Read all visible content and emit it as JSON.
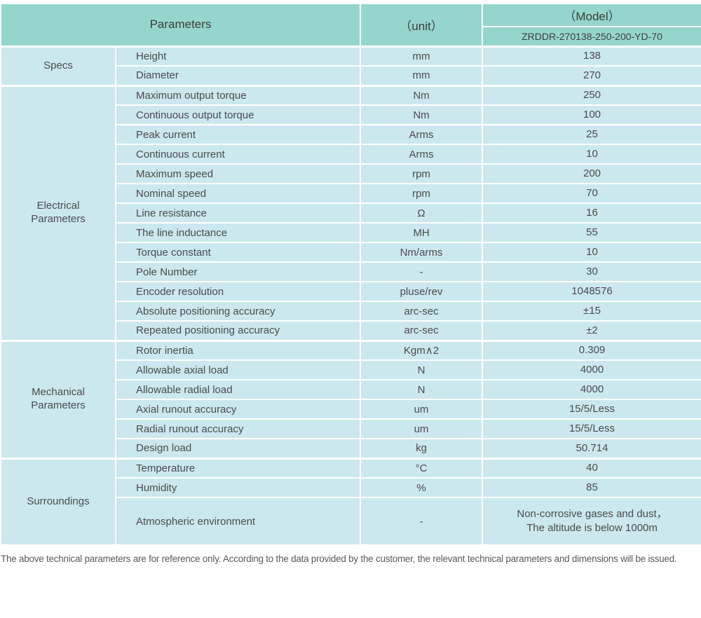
{
  "colors": {
    "header_bg": "#95d6cc",
    "body_bg": "#cce8ef",
    "text": "#4a4a4a",
    "footer_text": "#595959"
  },
  "header": {
    "parameters_label": "Parameters",
    "unit_label": "（unit）",
    "model_label": "（Model）",
    "model_value": "ZRDDR-270138-250-200-YD-70"
  },
  "table": {
    "sections": [
      {
        "category": "Specs",
        "rows": [
          {
            "param": "Height",
            "unit": "mm",
            "value": "138"
          },
          {
            "param": "Diameter",
            "unit": "mm",
            "value": "270"
          }
        ]
      },
      {
        "category": "Electrical Parameters",
        "rows": [
          {
            "param": "Maximum output torque",
            "unit": "Nm",
            "value": "250"
          },
          {
            "param": "Continuous output torque",
            "unit": "Nm",
            "value": "100"
          },
          {
            "param": "Peak current",
            "unit": "Arms",
            "value": "25"
          },
          {
            "param": "Continuous current",
            "unit": "Arms",
            "value": "10"
          },
          {
            "param": "Maximum speed",
            "unit": "rpm",
            "value": "200"
          },
          {
            "param": "Nominal speed",
            "unit": "rpm",
            "value": "70"
          },
          {
            "param": "Line resistance",
            "unit": "Ω",
            "value": "16"
          },
          {
            "param": "The line inductance",
            "unit": "MH",
            "value": "55"
          },
          {
            "param": "Torque constant",
            "unit": "Nm/arms",
            "value": "10"
          },
          {
            "param": "Pole Number",
            "unit": "-",
            "value": "30"
          },
          {
            "param": "Encoder resolution",
            "unit": "pluse/rev",
            "value": "1048576"
          },
          {
            "param": "Absolute positioning accuracy",
            "unit": "arc-sec",
            "value": "±15"
          },
          {
            "param": "Repeated positioning accuracy",
            "unit": "arc-sec",
            "value": "±2"
          }
        ]
      },
      {
        "category": "Mechanical Parameters",
        "rows": [
          {
            "param": "Rotor inertia",
            "unit": "Kgm∧2",
            "value": "0.309"
          },
          {
            "param": "Allowable axial load",
            "unit": "N",
            "value": "4000"
          },
          {
            "param": "Allowable radial load",
            "unit": "N",
            "value": "4000"
          },
          {
            "param": "Axial runout accuracy",
            "unit": "um",
            "value": "15/5/Less"
          },
          {
            "param": "Radial runout accuracy",
            "unit": "um",
            "value": "15/5/Less"
          },
          {
            "param": "Design load",
            "unit": "kg",
            "value": "50.714"
          }
        ]
      },
      {
        "category": "Surroundings",
        "rows": [
          {
            "param": "Temperature",
            "unit": "°C",
            "value": "40"
          },
          {
            "param": "Humidity",
            "unit": "%",
            "value": "85"
          },
          {
            "param": "Atmospheric environment",
            "unit": "-",
            "value": "Non-corrosive gases and dust，\nThe altitude is below 1000m",
            "tall": true
          }
        ]
      }
    ]
  },
  "footer": {
    "note": "The above technical parameters are for reference only. According to the data provided by the customer, the relevant technical parameters and dimensions will be issued."
  }
}
